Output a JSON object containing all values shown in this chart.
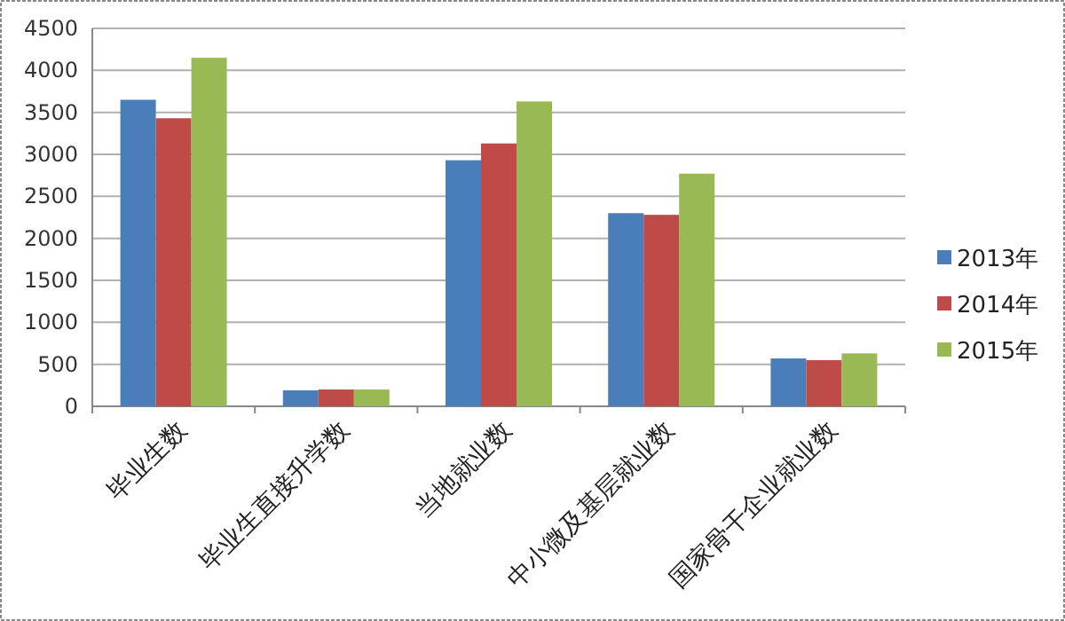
{
  "chart_data": {
    "type": "bar",
    "categories": [
      "毕业生数",
      "毕业生直接升学数",
      "当地就业数",
      "中小微及基层就业数",
      "国家骨干企业就业数"
    ],
    "series": [
      {
        "name": "2013年",
        "color": "#4a7ebb",
        "values": [
          3650,
          190,
          2930,
          2300,
          570
        ]
      },
      {
        "name": "2014年",
        "color": "#be4b48",
        "values": [
          3430,
          200,
          3130,
          2280,
          550
        ]
      },
      {
        "name": "2015年",
        "color": "#98b954",
        "values": [
          4150,
          200,
          3630,
          2770,
          630
        ]
      }
    ],
    "ylim": [
      0,
      4500
    ],
    "yticks": [
      0,
      500,
      1000,
      1500,
      2000,
      2500,
      3000,
      3500,
      4000,
      4500
    ],
    "grid": "y",
    "legend": "right"
  }
}
